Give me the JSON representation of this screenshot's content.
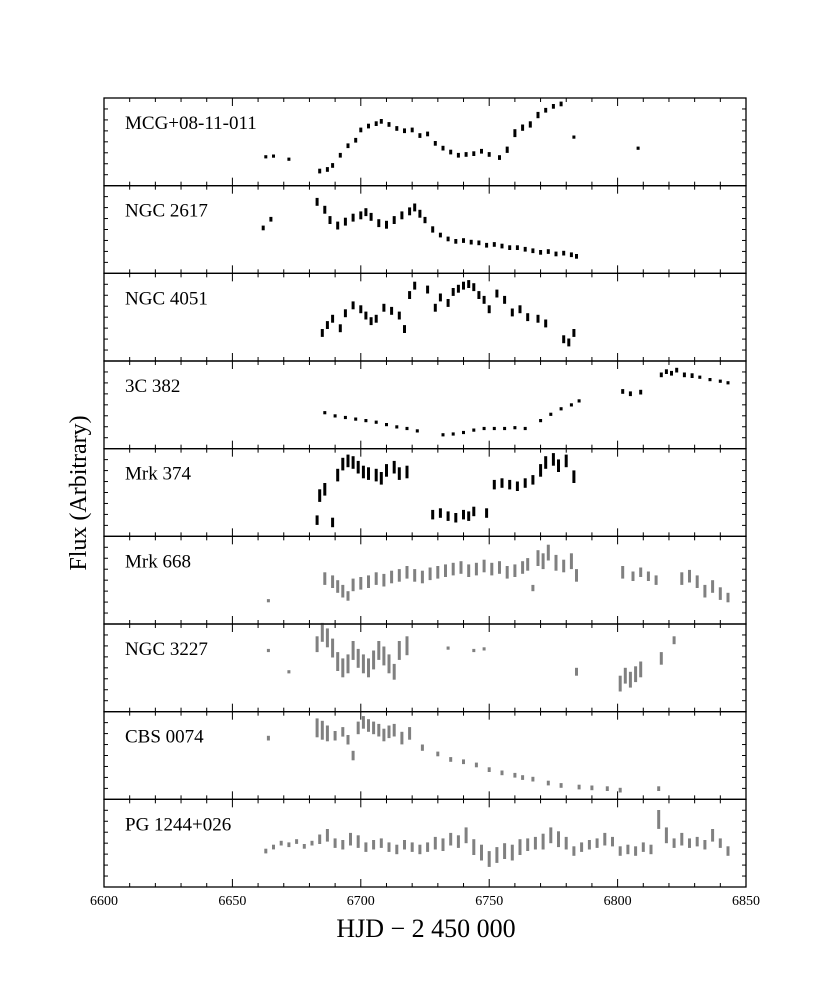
{
  "chart_data": {
    "type": "scatter",
    "xlabel": "HJD − 2 450 000",
    "ylabel": "Flux (Arbitrary)",
    "xlim": [
      6600,
      6850
    ],
    "x_ticks": [
      "6600",
      "6650",
      "6700",
      "6750",
      "6800",
      "6850"
    ],
    "grid": false,
    "panels": [
      {
        "name": "MCG+08-11-011",
        "color": "#000000",
        "ylim": [
          0,
          1
        ],
        "x": [
          6663,
          6666,
          6672,
          6684,
          6687,
          6689,
          6692,
          6695,
          6698,
          6700,
          6703,
          6706,
          6708,
          6711,
          6714,
          6717,
          6720,
          6723,
          6726,
          6729,
          6732,
          6735,
          6738,
          6741,
          6744,
          6747,
          6750,
          6754,
          6757,
          6760,
          6763,
          6766,
          6769,
          6772,
          6775,
          6778,
          6783,
          6808
        ],
        "y": [
          0.31,
          0.32,
          0.28,
          0.13,
          0.15,
          0.2,
          0.33,
          0.45,
          0.52,
          0.65,
          0.7,
          0.73,
          0.76,
          0.72,
          0.67,
          0.64,
          0.65,
          0.58,
          0.6,
          0.48,
          0.42,
          0.37,
          0.33,
          0.34,
          0.35,
          0.38,
          0.34,
          0.3,
          0.4,
          0.61,
          0.68,
          0.72,
          0.84,
          0.9,
          0.95,
          0.98,
          0.56,
          0.42
        ],
        "yerr": [
          0.02,
          0.02,
          0.02,
          0.03,
          0.03,
          0.03,
          0.03,
          0.03,
          0.03,
          0.03,
          0.03,
          0.03,
          0.03,
          0.03,
          0.03,
          0.03,
          0.03,
          0.03,
          0.03,
          0.03,
          0.03,
          0.03,
          0.03,
          0.03,
          0.03,
          0.03,
          0.03,
          0.03,
          0.04,
          0.05,
          0.04,
          0.04,
          0.04,
          0.03,
          0.03,
          0.03,
          0.02,
          0.02
        ]
      },
      {
        "name": "NGC 2617",
        "color": "#000000",
        "ylim": [
          0,
          1
        ],
        "x": [
          6662,
          6665,
          6683,
          6686,
          6688,
          6691,
          6694,
          6697,
          6700,
          6702,
          6704,
          6707,
          6710,
          6713,
          6716,
          6719,
          6721,
          6723,
          6725,
          6728,
          6731,
          6734,
          6737,
          6740,
          6743,
          6746,
          6749,
          6752,
          6755,
          6758,
          6761,
          6764,
          6767,
          6770,
          6773,
          6776,
          6779,
          6782,
          6784
        ],
        "y": [
          0.52,
          0.63,
          0.85,
          0.75,
          0.62,
          0.55,
          0.6,
          0.65,
          0.68,
          0.72,
          0.66,
          0.58,
          0.56,
          0.62,
          0.68,
          0.73,
          0.78,
          0.7,
          0.62,
          0.5,
          0.43,
          0.38,
          0.35,
          0.36,
          0.34,
          0.33,
          0.3,
          0.31,
          0.29,
          0.27,
          0.27,
          0.25,
          0.23,
          0.21,
          0.22,
          0.19,
          0.2,
          0.18,
          0.16
        ],
        "yerr": [
          0.03,
          0.03,
          0.05,
          0.05,
          0.05,
          0.05,
          0.05,
          0.05,
          0.05,
          0.05,
          0.05,
          0.05,
          0.05,
          0.05,
          0.05,
          0.05,
          0.05,
          0.05,
          0.04,
          0.04,
          0.03,
          0.03,
          0.03,
          0.03,
          0.03,
          0.03,
          0.03,
          0.03,
          0.03,
          0.03,
          0.03,
          0.03,
          0.03,
          0.03,
          0.03,
          0.03,
          0.03,
          0.03,
          0.03
        ]
      },
      {
        "name": "NGC 4051",
        "color": "#000000",
        "ylim": [
          0,
          1
        ],
        "x": [
          6685,
          6687,
          6689,
          6692,
          6694,
          6697,
          6700,
          6702,
          6704,
          6706,
          6709,
          6712,
          6715,
          6717,
          6719,
          6721,
          6726,
          6729,
          6731,
          6734,
          6736,
          6738,
          6740,
          6742,
          6744,
          6746,
          6748,
          6750,
          6753,
          6756,
          6759,
          6762,
          6765,
          6769,
          6772,
          6779,
          6781,
          6783
        ],
        "y": [
          0.3,
          0.4,
          0.48,
          0.36,
          0.55,
          0.65,
          0.6,
          0.52,
          0.45,
          0.48,
          0.62,
          0.58,
          0.52,
          0.35,
          0.78,
          0.9,
          0.85,
          0.62,
          0.75,
          0.68,
          0.82,
          0.86,
          0.9,
          0.92,
          0.88,
          0.78,
          0.72,
          0.6,
          0.8,
          0.72,
          0.56,
          0.6,
          0.5,
          0.48,
          0.42,
          0.22,
          0.18,
          0.3
        ],
        "yerr": [
          0.05,
          0.05,
          0.05,
          0.05,
          0.05,
          0.05,
          0.05,
          0.05,
          0.05,
          0.05,
          0.05,
          0.05,
          0.05,
          0.05,
          0.05,
          0.05,
          0.05,
          0.05,
          0.05,
          0.05,
          0.05,
          0.05,
          0.05,
          0.05,
          0.05,
          0.05,
          0.05,
          0.05,
          0.05,
          0.05,
          0.05,
          0.05,
          0.05,
          0.05,
          0.05,
          0.05,
          0.05,
          0.05
        ]
      },
      {
        "name": "3C 382",
        "color": "#000000",
        "ylim": [
          0,
          1
        ],
        "x": [
          6686,
          6690,
          6694,
          6698,
          6702,
          6706,
          6710,
          6714,
          6718,
          6722,
          6732,
          6736,
          6740,
          6744,
          6748,
          6752,
          6756,
          6760,
          6764,
          6770,
          6774,
          6778,
          6782,
          6785,
          6802,
          6805,
          6809,
          6817,
          6819,
          6821,
          6823,
          6826,
          6829,
          6832,
          6836,
          6840,
          6843
        ],
        "y": [
          0.4,
          0.36,
          0.34,
          0.32,
          0.3,
          0.28,
          0.25,
          0.22,
          0.2,
          0.17,
          0.12,
          0.13,
          0.15,
          0.18,
          0.2,
          0.2,
          0.2,
          0.21,
          0.2,
          0.3,
          0.38,
          0.45,
          0.5,
          0.55,
          0.67,
          0.64,
          0.66,
          0.88,
          0.92,
          0.9,
          0.94,
          0.88,
          0.87,
          0.85,
          0.82,
          0.8,
          0.78
        ],
        "yerr": [
          0.02,
          0.02,
          0.02,
          0.02,
          0.02,
          0.02,
          0.02,
          0.02,
          0.02,
          0.02,
          0.02,
          0.02,
          0.02,
          0.02,
          0.02,
          0.02,
          0.02,
          0.02,
          0.02,
          0.02,
          0.02,
          0.02,
          0.02,
          0.02,
          0.03,
          0.03,
          0.03,
          0.03,
          0.03,
          0.03,
          0.03,
          0.03,
          0.03,
          0.02,
          0.02,
          0.02,
          0.02
        ]
      },
      {
        "name": "Mrk 374",
        "color": "#000000",
        "ylim": [
          0,
          1
        ],
        "x": [
          6683,
          6684,
          6686,
          6689,
          6691,
          6693,
          6695,
          6697,
          6699,
          6701,
          6703,
          6706,
          6708,
          6710,
          6713,
          6715,
          6718,
          6728,
          6731,
          6734,
          6737,
          6740,
          6742,
          6744,
          6749,
          6752,
          6755,
          6758,
          6761,
          6764,
          6767,
          6770,
          6772,
          6775,
          6777,
          6780,
          6783
        ],
        "y": [
          0.15,
          0.46,
          0.54,
          0.12,
          0.72,
          0.86,
          0.9,
          0.88,
          0.82,
          0.76,
          0.74,
          0.72,
          0.68,
          0.78,
          0.82,
          0.74,
          0.76,
          0.22,
          0.24,
          0.2,
          0.18,
          0.22,
          0.2,
          0.26,
          0.24,
          0.6,
          0.62,
          0.6,
          0.58,
          0.62,
          0.66,
          0.78,
          0.88,
          0.92,
          0.84,
          0.9,
          0.7
        ],
        "yerr": [
          0.06,
          0.08,
          0.08,
          0.06,
          0.08,
          0.08,
          0.08,
          0.08,
          0.08,
          0.08,
          0.08,
          0.08,
          0.08,
          0.08,
          0.08,
          0.08,
          0.08,
          0.06,
          0.06,
          0.06,
          0.06,
          0.06,
          0.06,
          0.06,
          0.06,
          0.06,
          0.06,
          0.06,
          0.06,
          0.06,
          0.06,
          0.08,
          0.08,
          0.08,
          0.08,
          0.08,
          0.08
        ]
      },
      {
        "name": "Mrk 668",
        "color": "#808080",
        "ylim": [
          0,
          1
        ],
        "x": [
          6664,
          6686,
          6689,
          6691,
          6693,
          6695,
          6697,
          6700,
          6703,
          6706,
          6709,
          6712,
          6715,
          6718,
          6721,
          6724,
          6727,
          6730,
          6733,
          6736,
          6739,
          6742,
          6745,
          6748,
          6751,
          6754,
          6757,
          6760,
          6763,
          6765,
          6767,
          6769,
          6771,
          6773,
          6776,
          6779,
          6782,
          6784,
          6802,
          6806,
          6809,
          6812,
          6815,
          6825,
          6828,
          6831,
          6834,
          6837,
          6840,
          6843
        ],
        "y": [
          0.24,
          0.52,
          0.48,
          0.42,
          0.36,
          0.3,
          0.44,
          0.46,
          0.48,
          0.52,
          0.5,
          0.54,
          0.56,
          0.6,
          0.56,
          0.54,
          0.58,
          0.6,
          0.62,
          0.64,
          0.66,
          0.62,
          0.64,
          0.68,
          0.64,
          0.66,
          0.6,
          0.62,
          0.66,
          0.7,
          0.4,
          0.78,
          0.74,
          0.85,
          0.72,
          0.68,
          0.74,
          0.56,
          0.6,
          0.55,
          0.6,
          0.55,
          0.5,
          0.52,
          0.55,
          0.48,
          0.36,
          0.42,
          0.33,
          0.28
        ],
        "yerr": [
          0.02,
          0.08,
          0.08,
          0.08,
          0.08,
          0.06,
          0.08,
          0.08,
          0.08,
          0.08,
          0.08,
          0.08,
          0.08,
          0.08,
          0.08,
          0.08,
          0.08,
          0.08,
          0.08,
          0.08,
          0.08,
          0.08,
          0.08,
          0.08,
          0.08,
          0.08,
          0.08,
          0.08,
          0.08,
          0.08,
          0.04,
          0.1,
          0.1,
          0.1,
          0.1,
          0.08,
          0.1,
          0.08,
          0.08,
          0.06,
          0.06,
          0.06,
          0.06,
          0.08,
          0.08,
          0.08,
          0.08,
          0.08,
          0.08,
          0.06
        ]
      },
      {
        "name": "NGC 3227",
        "color": "#808080",
        "ylim": [
          0,
          1
        ],
        "x": [
          6664,
          6672,
          6683,
          6685,
          6687,
          6689,
          6691,
          6693,
          6695,
          6697,
          6699,
          6701,
          6703,
          6705,
          6707,
          6709,
          6711,
          6713,
          6715,
          6718,
          6734,
          6744,
          6748,
          6784,
          6801,
          6803,
          6805,
          6807,
          6809,
          6817,
          6822
        ],
        "y": [
          0.72,
          0.45,
          0.8,
          0.95,
          0.88,
          0.75,
          0.58,
          0.5,
          0.55,
          0.72,
          0.62,
          0.55,
          0.5,
          0.6,
          0.72,
          0.65,
          0.55,
          0.45,
          0.72,
          0.78,
          0.75,
          0.72,
          0.74,
          0.45,
          0.3,
          0.4,
          0.35,
          0.42,
          0.48,
          0.62,
          0.85
        ],
        "yerr": [
          0.02,
          0.02,
          0.1,
          0.12,
          0.12,
          0.12,
          0.12,
          0.12,
          0.12,
          0.12,
          0.12,
          0.12,
          0.12,
          0.12,
          0.12,
          0.12,
          0.12,
          0.1,
          0.12,
          0.12,
          0.02,
          0.02,
          0.02,
          0.05,
          0.1,
          0.1,
          0.1,
          0.1,
          0.1,
          0.08,
          0.05
        ]
      },
      {
        "name": "CBS 0074",
        "color": "#808080",
        "ylim": [
          0,
          1
        ],
        "x": [
          6664,
          6683,
          6685,
          6687,
          6690,
          6693,
          6695,
          6697,
          6699,
          6701,
          6703,
          6705,
          6707,
          6709,
          6711,
          6713,
          6716,
          6719,
          6724,
          6730,
          6735,
          6740,
          6745,
          6750,
          6755,
          6760,
          6763,
          6767,
          6773,
          6778,
          6785,
          6790,
          6796,
          6801,
          6816
        ],
        "y": [
          0.72,
          0.85,
          0.82,
          0.78,
          0.75,
          0.8,
          0.7,
          0.5,
          0.85,
          0.92,
          0.88,
          0.85,
          0.82,
          0.76,
          0.8,
          0.82,
          0.72,
          0.78,
          0.6,
          0.52,
          0.45,
          0.42,
          0.38,
          0.32,
          0.28,
          0.25,
          0.22,
          0.2,
          0.15,
          0.12,
          0.1,
          0.09,
          0.08,
          0.06,
          0.08
        ],
        "yerr": [
          0.03,
          0.12,
          0.12,
          0.1,
          0.06,
          0.06,
          0.06,
          0.06,
          0.08,
          0.08,
          0.08,
          0.08,
          0.08,
          0.08,
          0.08,
          0.08,
          0.08,
          0.08,
          0.04,
          0.03,
          0.03,
          0.03,
          0.03,
          0.03,
          0.03,
          0.03,
          0.03,
          0.03,
          0.03,
          0.03,
          0.03,
          0.03,
          0.03,
          0.03,
          0.03
        ]
      },
      {
        "name": "PG 1244+026",
        "color": "#808080",
        "ylim": [
          0,
          1
        ],
        "x": [
          6663,
          6666,
          6669,
          6672,
          6675,
          6678,
          6681,
          6684,
          6687,
          6690,
          6693,
          6696,
          6699,
          6702,
          6705,
          6708,
          6711,
          6714,
          6717,
          6720,
          6723,
          6726,
          6729,
          6732,
          6735,
          6738,
          6741,
          6744,
          6747,
          6750,
          6753,
          6756,
          6759,
          6762,
          6765,
          6768,
          6771,
          6774,
          6777,
          6780,
          6783,
          6786,
          6789,
          6792,
          6795,
          6798,
          6801,
          6804,
          6807,
          6810,
          6813,
          6816,
          6819,
          6822,
          6825,
          6828,
          6831,
          6834,
          6837,
          6840,
          6843
        ],
        "y": [
          0.4,
          0.45,
          0.5,
          0.48,
          0.52,
          0.46,
          0.5,
          0.55,
          0.6,
          0.5,
          0.48,
          0.55,
          0.52,
          0.45,
          0.48,
          0.5,
          0.45,
          0.42,
          0.48,
          0.45,
          0.42,
          0.45,
          0.5,
          0.48,
          0.55,
          0.52,
          0.6,
          0.45,
          0.38,
          0.3,
          0.35,
          0.4,
          0.38,
          0.45,
          0.48,
          0.5,
          0.52,
          0.6,
          0.55,
          0.5,
          0.4,
          0.45,
          0.48,
          0.5,
          0.55,
          0.52,
          0.4,
          0.42,
          0.4,
          0.45,
          0.42,
          0.8,
          0.6,
          0.5,
          0.55,
          0.5,
          0.52,
          0.48,
          0.6,
          0.5,
          0.4
        ],
        "yerr": [
          0.03,
          0.03,
          0.03,
          0.03,
          0.03,
          0.03,
          0.03,
          0.06,
          0.08,
          0.06,
          0.06,
          0.08,
          0.08,
          0.06,
          0.06,
          0.06,
          0.06,
          0.06,
          0.06,
          0.06,
          0.06,
          0.06,
          0.08,
          0.08,
          0.08,
          0.08,
          0.1,
          0.1,
          0.1,
          0.1,
          0.1,
          0.1,
          0.1,
          0.1,
          0.08,
          0.08,
          0.1,
          0.1,
          0.1,
          0.08,
          0.06,
          0.06,
          0.06,
          0.06,
          0.08,
          0.06,
          0.06,
          0.06,
          0.06,
          0.06,
          0.06,
          0.12,
          0.1,
          0.06,
          0.08,
          0.06,
          0.06,
          0.06,
          0.08,
          0.06,
          0.06
        ]
      }
    ]
  }
}
